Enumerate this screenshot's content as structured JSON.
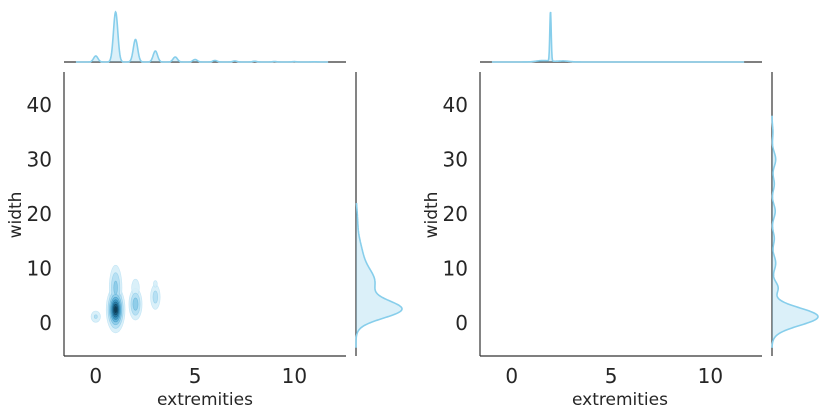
{
  "chart_data": [
    {
      "type": "kde-jointplot",
      "xlabel": "extremities",
      "ylabel": "width",
      "xlim": [
        -1.6,
        12.6
      ],
      "ylim": [
        -6,
        46
      ],
      "xticks": [
        0,
        5,
        10
      ],
      "yticks": [
        0,
        10,
        20,
        30,
        40
      ],
      "grid": false,
      "color": "#87ceeb",
      "joint_density_clusters": [
        {
          "x": 0,
          "y": 1.2,
          "sx": 0.16,
          "sy": 0.7,
          "w": 0.18
        },
        {
          "x": 1,
          "y": 2.5,
          "sx": 0.2,
          "sy": 1.8,
          "w": 1.0
        },
        {
          "x": 1,
          "y": 6.5,
          "sx": 0.17,
          "sy": 2.2,
          "w": 0.35
        },
        {
          "x": 2,
          "y": 3.5,
          "sx": 0.17,
          "sy": 1.5,
          "w": 0.4
        },
        {
          "x": 2,
          "y": 6.5,
          "sx": 0.15,
          "sy": 1.2,
          "w": 0.14
        },
        {
          "x": 3,
          "y": 4.8,
          "sx": 0.15,
          "sy": 1.4,
          "w": 0.22
        },
        {
          "x": 3,
          "y": 7.2,
          "sx": 0.13,
          "sy": 0.8,
          "w": 0.08
        },
        {
          "x": 4,
          "y": 4.0,
          "sx": 0.12,
          "sy": 0.4,
          "w": 0.05
        }
      ],
      "marginal_x_peaks": [
        {
          "x": 0,
          "w": 0.12
        },
        {
          "x": 1,
          "w": 1.0
        },
        {
          "x": 2,
          "w": 0.45
        },
        {
          "x": 3,
          "w": 0.22
        },
        {
          "x": 4,
          "w": 0.1
        },
        {
          "x": 5,
          "w": 0.05
        },
        {
          "x": 6,
          "w": 0.03
        },
        {
          "x": 7,
          "w": 0.02
        },
        {
          "x": 8,
          "w": 0.015
        },
        {
          "x": 9,
          "w": 0.01
        },
        {
          "x": 10,
          "w": 0.008
        },
        {
          "x": 11,
          "w": 0.005
        }
      ],
      "marginal_y_peaks": [
        {
          "y": 2.5,
          "s": 1.6,
          "w": 1.0
        },
        {
          "y": 7.5,
          "s": 2.5,
          "w": 0.42
        },
        {
          "y": 13,
          "s": 2.5,
          "w": 0.12
        },
        {
          "y": 19,
          "s": 2.2,
          "w": 0.03
        }
      ]
    },
    {
      "type": "kde-jointplot",
      "xlabel": "extremities",
      "ylabel": "width",
      "xlim": [
        -1.6,
        12.6
      ],
      "ylim": [
        -6,
        46
      ],
      "xticks": [
        0,
        5,
        10
      ],
      "yticks": [
        0,
        10,
        20,
        30,
        40
      ],
      "grid": false,
      "color": "#87ceeb",
      "joint_density_clusters": [],
      "marginal_x_peaks": [
        {
          "x": 1.95,
          "s": 0.035,
          "w": 1.0
        },
        {
          "x": 1.6,
          "s": 0.35,
          "w": 0.03
        },
        {
          "x": 2.6,
          "s": 0.3,
          "w": 0.02
        }
      ],
      "marginal_y_peaks": [
        {
          "y": 1.2,
          "s": 1.6,
          "w": 1.0
        },
        {
          "y": 6.5,
          "s": 1.1,
          "w": 0.13
        },
        {
          "y": 11,
          "s": 1.3,
          "w": 0.08
        },
        {
          "y": 15.5,
          "s": 1.1,
          "w": 0.05
        },
        {
          "y": 20.5,
          "s": 1.2,
          "w": 0.07
        },
        {
          "y": 25.5,
          "s": 1.1,
          "w": 0.05
        },
        {
          "y": 30,
          "s": 1.3,
          "w": 0.08
        },
        {
          "y": 35,
          "s": 1.2,
          "w": 0.02
        }
      ]
    }
  ]
}
